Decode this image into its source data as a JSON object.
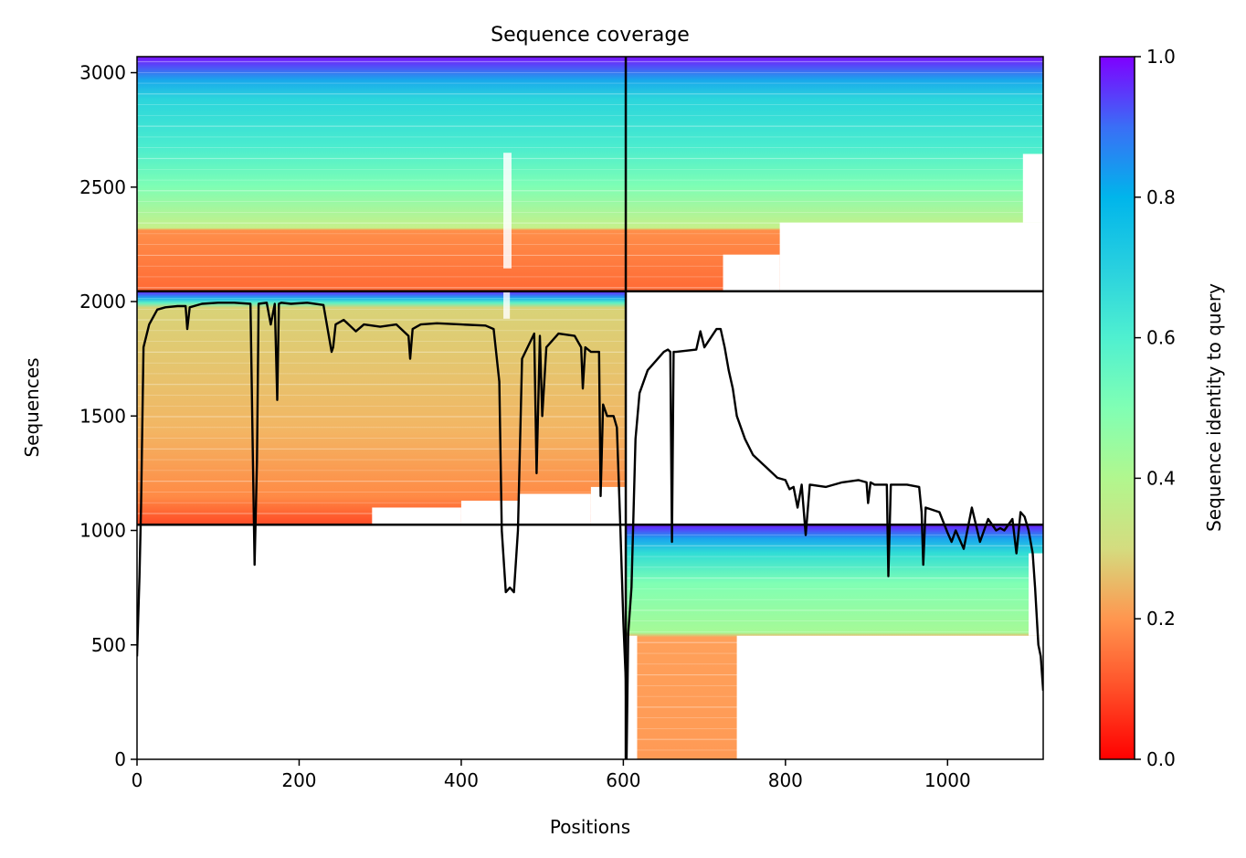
{
  "chart_data": {
    "type": "heatmap",
    "title": "Sequence coverage",
    "xlabel": "Positions",
    "ylabel": "Sequences",
    "xlim": [
      0,
      1118
    ],
    "ylim": [
      0,
      3070
    ],
    "xticks": [
      0,
      200,
      400,
      600,
      800,
      1000
    ],
    "yticks": [
      0,
      500,
      1000,
      1500,
      2000,
      2500,
      3000
    ],
    "grid": false,
    "colorbar": {
      "label": "Sequence identity to query",
      "colormap": "rainbow_r",
      "range": [
        0,
        1
      ],
      "ticks": [
        0.0,
        0.2,
        0.4,
        0.6,
        0.8,
        1.0
      ],
      "tick_labels": [
        "0.0",
        "0.2",
        "0.4",
        "0.6",
        "0.8",
        "1.0"
      ]
    },
    "chain_boundary_x": 603,
    "block_boundaries_y": [
      1025,
      2045
    ],
    "blocks": [
      {
        "name": "paired",
        "x": [
          0,
          1118
        ],
        "y": [
          2045,
          3070
        ]
      },
      {
        "name": "chain-A-unpaired",
        "x": [
          0,
          603
        ],
        "y": [
          1025,
          2045
        ]
      },
      {
        "name": "chain-B-unpaired",
        "x": [
          603,
          1118
        ],
        "y": [
          0,
          1025
        ]
      }
    ],
    "coverage_line": {
      "color": "#000000",
      "x": [
        0,
        3,
        5,
        8,
        15,
        25,
        35,
        50,
        60,
        62,
        65,
        80,
        100,
        120,
        140,
        143,
        145,
        148,
        150,
        160,
        165,
        170,
        173,
        175,
        178,
        190,
        210,
        230,
        240,
        242,
        245,
        255,
        270,
        280,
        300,
        320,
        335,
        337,
        340,
        345,
        350,
        370,
        400,
        430,
        440,
        447,
        450,
        455,
        460,
        465,
        470,
        475,
        490,
        493,
        497,
        500,
        505,
        520,
        540,
        548,
        550,
        553,
        560,
        570,
        572,
        575,
        580,
        588,
        592,
        596,
        600,
        603,
        604,
        606,
        610,
        615,
        620,
        630,
        650,
        655,
        658,
        660,
        662,
        665,
        690,
        695,
        700,
        715,
        720,
        725,
        730,
        735,
        740,
        750,
        760,
        775,
        790,
        800,
        805,
        810,
        815,
        820,
        825,
        830,
        850,
        870,
        890,
        900,
        902,
        905,
        910,
        920,
        925,
        927,
        930,
        950,
        965,
        968,
        970,
        973,
        990,
        1000,
        1005,
        1010,
        1020,
        1030,
        1040,
        1050,
        1060,
        1065,
        1070,
        1080,
        1085,
        1090,
        1095,
        1100,
        1105,
        1108,
        1112,
        1115,
        1118
      ],
      "y": [
        450,
        800,
        1100,
        1800,
        1900,
        1965,
        1975,
        1980,
        1980,
        1880,
        1975,
        1990,
        1995,
        1995,
        1990,
        1300,
        850,
        1300,
        1990,
        1995,
        1900,
        1990,
        1570,
        1990,
        1995,
        1990,
        1995,
        1985,
        1780,
        1800,
        1900,
        1920,
        1870,
        1900,
        1890,
        1900,
        1850,
        1750,
        1880,
        1890,
        1900,
        1905,
        1900,
        1895,
        1880,
        1650,
        1000,
        730,
        750,
        730,
        1000,
        1750,
        1860,
        1250,
        1850,
        1500,
        1800,
        1860,
        1850,
        1800,
        1620,
        1800,
        1780,
        1780,
        1150,
        1550,
        1500,
        1500,
        1450,
        1050,
        600,
        350,
        0,
        550,
        750,
        1400,
        1600,
        1700,
        1780,
        1790,
        1780,
        950,
        1780,
        1780,
        1790,
        1870,
        1800,
        1880,
        1880,
        1800,
        1700,
        1620,
        1500,
        1400,
        1330,
        1280,
        1230,
        1220,
        1180,
        1190,
        1100,
        1200,
        980,
        1200,
        1190,
        1210,
        1220,
        1210,
        1120,
        1210,
        1200,
        1200,
        1200,
        800,
        1200,
        1200,
        1190,
        1080,
        850,
        1100,
        1080,
        990,
        950,
        1000,
        920,
        1100,
        950,
        1050,
        1000,
        1010,
        1000,
        1050,
        900,
        1080,
        1060,
        1000,
        900,
        750,
        500,
        450,
        300
      ]
    }
  }
}
